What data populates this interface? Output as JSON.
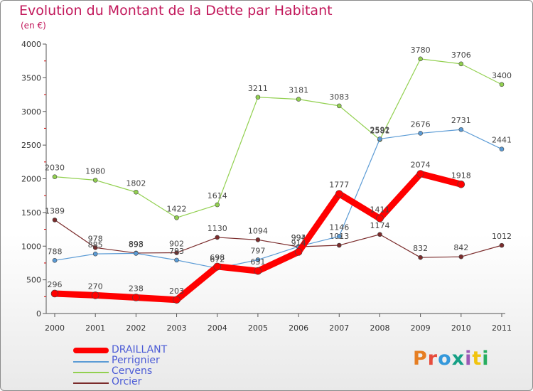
{
  "title": "Evolution du Montant de la Dette par Habitant",
  "subtitle": "(en €)",
  "logo": {
    "text": "Proxiti",
    "colors": [
      "#e67e22",
      "#e74c3c",
      "#3498db",
      "#16a085",
      "#9b59b6",
      "#f1c40f",
      "#27ae60"
    ]
  },
  "chart_data": {
    "type": "line",
    "x": [
      "2000",
      "2001",
      "2002",
      "2003",
      "2004",
      "2005",
      "2006",
      "2007",
      "2008",
      "2009",
      "2010",
      "2011"
    ],
    "ylim": [
      0,
      4000
    ],
    "yticks": [
      0,
      500,
      1000,
      1500,
      2000,
      2500,
      3000,
      3500,
      4000
    ],
    "ytick_labels": [
      "0",
      "500",
      "1000",
      "1500",
      "2000",
      "2500",
      "3000",
      "3500",
      "4000"
    ],
    "grid": false,
    "legend_position": "bottom-left",
    "series": [
      {
        "name": "DRAILLANT",
        "color": "#ff0000",
        "values": [
          296,
          270,
          238,
          203,
          698,
          631,
          914,
          1777,
          1411,
          2074,
          1918,
          null
        ],
        "labels": [
          "296",
          "270",
          "238",
          "203",
          "698",
          "631",
          "914",
          "1777",
          "1411",
          "2074",
          "1918",
          ""
        ]
      },
      {
        "name": "Perrignier",
        "color": "#5b9bd5",
        "values": [
          788,
          885,
          893,
          793,
          672,
          797,
          994,
          1146,
          2592,
          2676,
          2731,
          2441
        ],
        "labels": [
          "788",
          "885",
          "893",
          "793",
          "672",
          "797",
          "994",
          "1146",
          "2592",
          "2676",
          "2731",
          "2441"
        ]
      },
      {
        "name": "Cervens",
        "color": "#92d050",
        "values": [
          2030,
          1980,
          1802,
          1422,
          1614,
          3211,
          3181,
          3083,
          2581,
          3780,
          3706,
          3400
        ],
        "labels": [
          "2030",
          "1980",
          "1802",
          "1422",
          "1614",
          "3211",
          "3181",
          "3083",
          "2581",
          "3780",
          "3706",
          "3400"
        ]
      },
      {
        "name": "Orcier",
        "color": "#7b2c2c",
        "values": [
          1389,
          978,
          898,
          902,
          1130,
          1094,
          991,
          1013,
          1174,
          832,
          842,
          1012
        ],
        "labels": [
          "1389",
          "978",
          "898",
          "902",
          "1130",
          "1094",
          "991",
          "1013",
          "1174",
          "832",
          "842",
          "1012"
        ]
      }
    ]
  }
}
